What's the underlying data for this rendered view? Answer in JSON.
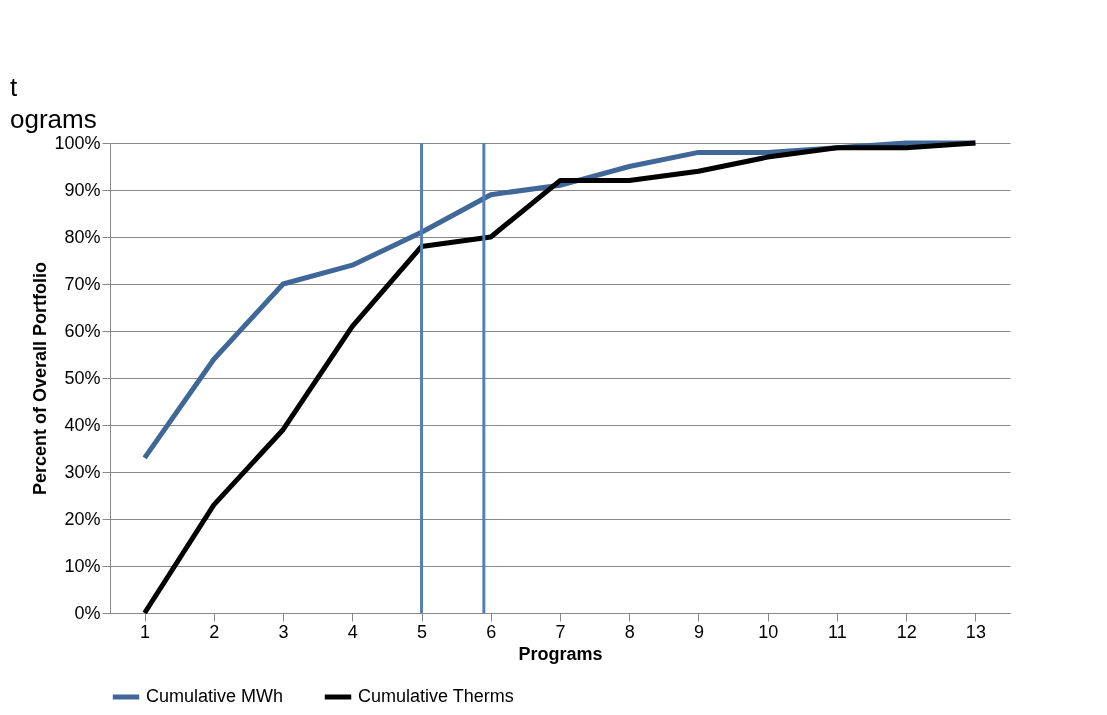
{
  "chart_data": {
    "type": "line",
    "xlabel": "Programs",
    "ylabel": "Percent of Overall Portfolio",
    "annotations": [
      "t",
      "ograms"
    ],
    "x": [
      1,
      2,
      3,
      4,
      5,
      6,
      7,
      8,
      9,
      10,
      11,
      12,
      13
    ],
    "series": [
      {
        "name": "Cumulative MWh",
        "color": "#3f6797",
        "values": [
          33,
          54,
          70,
          74,
          81,
          89,
          91,
          95,
          98,
          98,
          99,
          100,
          100
        ]
      },
      {
        "name": "Cumulative Therms",
        "color": "#000000",
        "values": [
          0,
          23,
          39,
          61,
          78,
          80,
          92,
          92,
          94,
          97,
          99,
          99,
          100
        ]
      }
    ],
    "xlim": [
      0.5,
      13.5
    ],
    "xticks": [
      1,
      2,
      3,
      4,
      5,
      6,
      7,
      8,
      9,
      10,
      11,
      12,
      13
    ],
    "ylim": [
      0,
      100
    ],
    "yticks": [
      {
        "value": 0,
        "label": "0%"
      },
      {
        "value": 10,
        "label": "10%"
      },
      {
        "value": 20,
        "label": "20%"
      },
      {
        "value": 30,
        "label": "30%"
      },
      {
        "value": 40,
        "label": "40%"
      },
      {
        "value": 50,
        "label": "50%"
      },
      {
        "value": 60,
        "label": "60%"
      },
      {
        "value": 70,
        "label": "70%"
      },
      {
        "value": 80,
        "label": "80%"
      },
      {
        "value": 90,
        "label": "90%"
      },
      {
        "value": 100,
        "label": "100%"
      }
    ],
    "ref_lines": [
      {
        "axis": "x",
        "value": 5.0,
        "color": "#4f81bd"
      },
      {
        "axis": "x",
        "value": 5.9,
        "color": "#4f81bd"
      }
    ],
    "grid": "y",
    "legend": "bottom",
    "marker": "none",
    "line_style": "solid"
  }
}
